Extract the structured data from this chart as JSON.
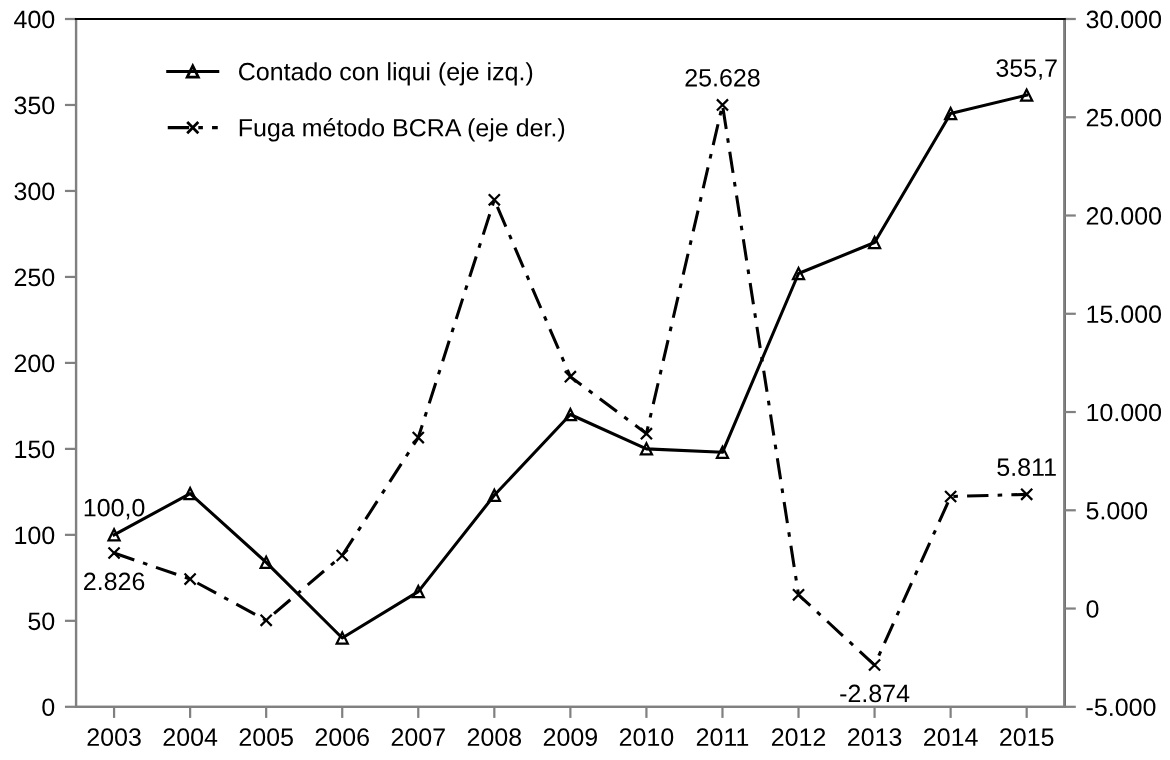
{
  "chart_data": {
    "type": "line",
    "categories": [
      "2003",
      "2004",
      "2005",
      "2006",
      "2007",
      "2008",
      "2009",
      "2010",
      "2011",
      "2012",
      "2013",
      "2014",
      "2015"
    ],
    "series": [
      {
        "name": "Contado con liqui (eje izq.)",
        "color": "#000000",
        "marker": "triangle",
        "line_style": "solid",
        "values": [
          100.0,
          124,
          84,
          40,
          67,
          123,
          170,
          150,
          148,
          252,
          270,
          345,
          355.7
        ],
        "value_labels": [
          "100,0",
          null,
          null,
          null,
          null,
          null,
          null,
          null,
          null,
          null,
          null,
          null,
          "355,7"
        ]
      },
      {
        "name": "Fuga método BCRA (eje der.)",
        "color": "#000000",
        "marker": "cross",
        "line_style": "dashed",
        "axis": "y2",
        "values": [
          2826,
          1500,
          -600,
          2700,
          8700,
          20800,
          11800,
          8900,
          25628,
          700,
          -2874,
          5700,
          5811
        ],
        "value_labels": [
          "2.826",
          null,
          null,
          null,
          null,
          null,
          null,
          null,
          "25.628",
          null,
          "-2.874",
          null,
          "5.811"
        ]
      }
    ],
    "ylim": [
      0,
      400
    ],
    "yticks": [
      0,
      50,
      100,
      150,
      200,
      250,
      300,
      350,
      400
    ],
    "y2lim": [
      -5000,
      30000
    ],
    "y2ticks": [
      {
        "value": -5000,
        "label": "-5.000"
      },
      0,
      {
        "value": 5000,
        "label": "5.000"
      },
      {
        "value": 10000,
        "label": "10.000"
      },
      {
        "value": 15000,
        "label": "15.000"
      },
      {
        "value": 20000,
        "label": "20.000"
      },
      {
        "value": 25000,
        "label": "25.000"
      },
      {
        "value": 30000,
        "label": "30.000"
      }
    ],
    "legend": "top left",
    "grid": false
  }
}
